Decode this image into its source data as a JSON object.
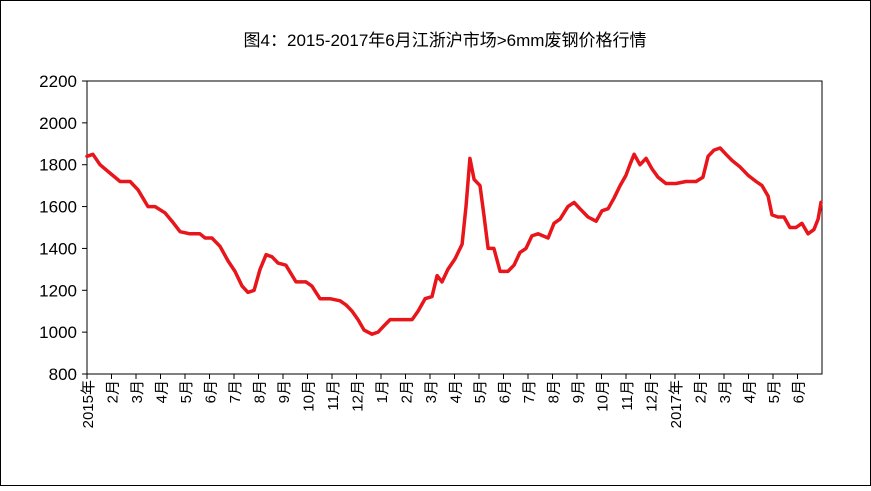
{
  "chart_data": {
    "type": "line",
    "title": "图4：2015-2017年6月江浙沪市场>6mm废钢价格行情",
    "xlim": [
      0,
      30
    ],
    "xticks": [
      {
        "value": 0,
        "label": "2015年"
      },
      {
        "value": 1,
        "label": "2月"
      },
      {
        "value": 2,
        "label": "3月"
      },
      {
        "value": 3,
        "label": "4月"
      },
      {
        "value": 4,
        "label": "5月"
      },
      {
        "value": 5,
        "label": "6月"
      },
      {
        "value": 6,
        "label": "7月"
      },
      {
        "value": 7,
        "label": "8月"
      },
      {
        "value": 8,
        "label": "9月"
      },
      {
        "value": 9,
        "label": "10月"
      },
      {
        "value": 10,
        "label": "11月"
      },
      {
        "value": 11,
        "label": "12月"
      },
      {
        "value": 12,
        "label": "1月"
      },
      {
        "value": 13,
        "label": "2月"
      },
      {
        "value": 14,
        "label": "3月"
      },
      {
        "value": 15,
        "label": "4月"
      },
      {
        "value": 16,
        "label": "5月"
      },
      {
        "value": 17,
        "label": "6月"
      },
      {
        "value": 18,
        "label": "7月"
      },
      {
        "value": 19,
        "label": "8月"
      },
      {
        "value": 20,
        "label": "9月"
      },
      {
        "value": 21,
        "label": "10月"
      },
      {
        "value": 22,
        "label": "11月"
      },
      {
        "value": 23,
        "label": "12月"
      },
      {
        "value": 24,
        "label": "2017年"
      },
      {
        "value": 25,
        "label": "2月"
      },
      {
        "value": 26,
        "label": "3月"
      },
      {
        "value": 27,
        "label": "4月"
      },
      {
        "value": 28,
        "label": "5月"
      },
      {
        "value": 29,
        "label": "6月"
      }
    ],
    "ylim": [
      800,
      2200
    ],
    "yticks": [
      800,
      1000,
      1200,
      1400,
      1600,
      1800,
      2000,
      2200
    ],
    "color": "#e8151b",
    "x": [
      0,
      0.24,
      0.53,
      0.94,
      1.35,
      1.76,
      2.08,
      2.49,
      2.78,
      3.18,
      3.47,
      3.8,
      4.2,
      4.61,
      4.82,
      5.1,
      5.43,
      5.76,
      6.04,
      6.33,
      6.57,
      6.82,
      7.06,
      7.31,
      7.55,
      7.8,
      8.12,
      8.53,
      8.94,
      9.18,
      9.51,
      9.92,
      10.33,
      10.57,
      10.82,
      11.06,
      11.31,
      11.63,
      11.88,
      12.12,
      12.37,
      12.78,
      13.27,
      13.51,
      13.8,
      14.08,
      14.29,
      14.49,
      14.73,
      15.02,
      15.31,
      15.47,
      15.63,
      15.8,
      16.04,
      16.2,
      16.37,
      16.61,
      16.86,
      17.18,
      17.43,
      17.67,
      17.92,
      18.16,
      18.41,
      18.82,
      19.06,
      19.31,
      19.63,
      19.88,
      20.12,
      20.45,
      20.78,
      21.02,
      21.27,
      21.51,
      21.76,
      22,
      22.16,
      22.33,
      22.57,
      22.82,
      23.06,
      23.31,
      23.63,
      24.04,
      24.45,
      24.86,
      25.14,
      25.35,
      25.59,
      25.84,
      26.08,
      26.33,
      26.65,
      26.98,
      27.31,
      27.55,
      27.8,
      27.96,
      28.2,
      28.45,
      28.69,
      28.94,
      29.18,
      29.43,
      29.67,
      29.84,
      29.96
    ],
    "values": [
      1840,
      1850,
      1800,
      1760,
      1720,
      1720,
      1680,
      1600,
      1600,
      1570,
      1530,
      1480,
      1470,
      1470,
      1450,
      1450,
      1410,
      1340,
      1290,
      1220,
      1190,
      1200,
      1300,
      1370,
      1360,
      1330,
      1320,
      1240,
      1240,
      1220,
      1160,
      1160,
      1150,
      1130,
      1100,
      1060,
      1010,
      990,
      1000,
      1030,
      1060,
      1060,
      1060,
      1100,
      1160,
      1170,
      1270,
      1240,
      1300,
      1350,
      1420,
      1600,
      1830,
      1730,
      1700,
      1560,
      1400,
      1400,
      1290,
      1290,
      1320,
      1380,
      1400,
      1460,
      1470,
      1450,
      1520,
      1540,
      1600,
      1620,
      1590,
      1550,
      1530,
      1580,
      1590,
      1640,
      1700,
      1750,
      1800,
      1850,
      1800,
      1830,
      1780,
      1740,
      1710,
      1710,
      1720,
      1720,
      1740,
      1840,
      1870,
      1880,
      1850,
      1820,
      1790,
      1750,
      1720,
      1700,
      1650,
      1560,
      1550,
      1550,
      1500,
      1500,
      1520,
      1470,
      1490,
      1540,
      1620
    ]
  }
}
